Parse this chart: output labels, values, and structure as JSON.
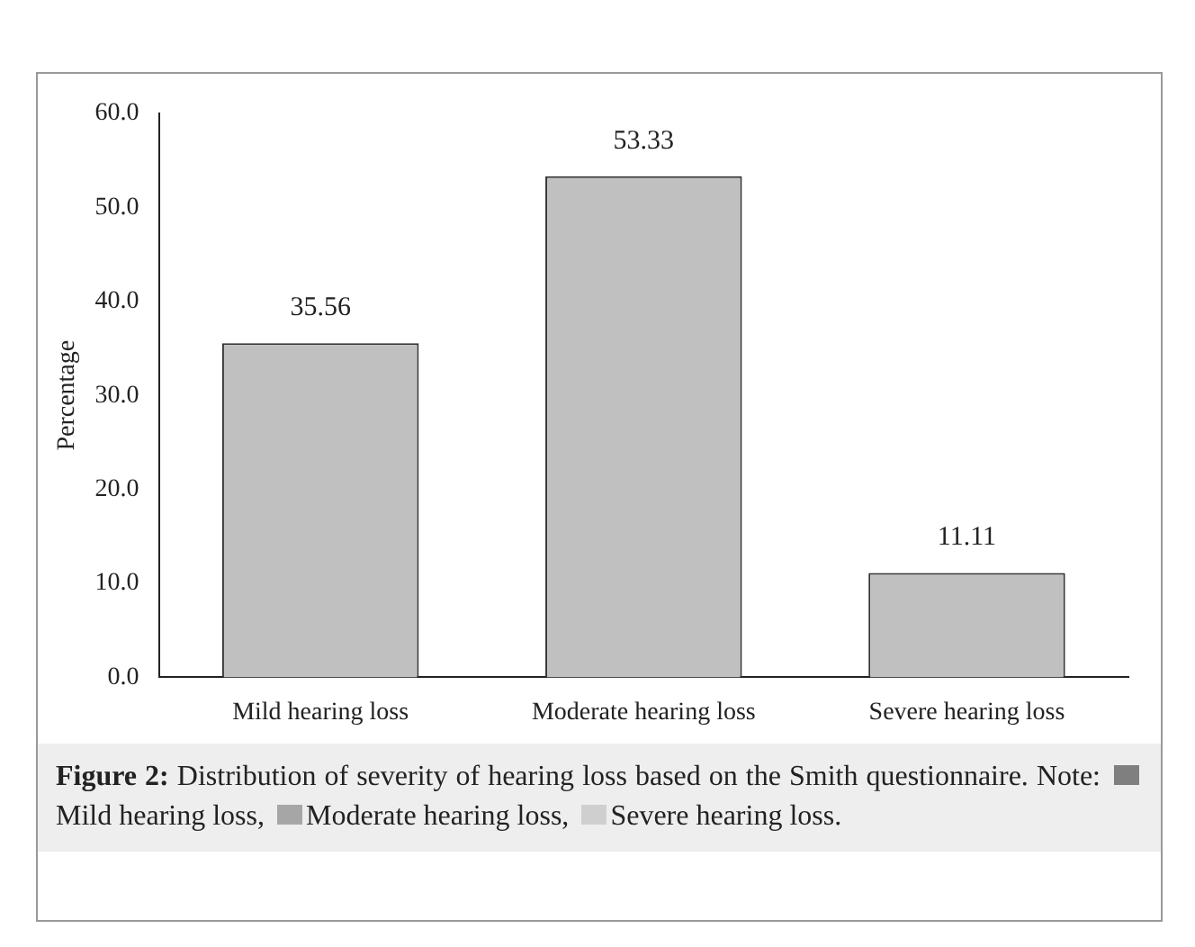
{
  "chart_data": {
    "type": "bar",
    "ylabel": "Percentage",
    "categories": [
      "Mild hearing loss",
      "Moderate hearing loss",
      "Severe hearing loss"
    ],
    "values": [
      35.56,
      53.33,
      11.11
    ],
    "color": "#c0c0c0",
    "data_labels": true,
    "grid": false,
    "legend": false,
    "ylim": [
      0,
      60
    ],
    "yticks": [
      {
        "value": 0,
        "label": "0.0"
      },
      {
        "value": 10,
        "label": "10.0"
      },
      {
        "value": 20,
        "label": "20.0"
      },
      {
        "value": 30,
        "label": "30.0"
      },
      {
        "value": 40,
        "label": "40.0"
      },
      {
        "value": 50,
        "label": "50.0"
      },
      {
        "value": 60,
        "label": "60.0"
      }
    ],
    "annotations": [
      "Figure 2:",
      "Distribution of severity of hearing loss based on the Smith questionnaire. Note:",
      "Mild hearing loss,",
      "Moderate hearing loss,",
      "Severe hearing loss."
    ]
  }
}
